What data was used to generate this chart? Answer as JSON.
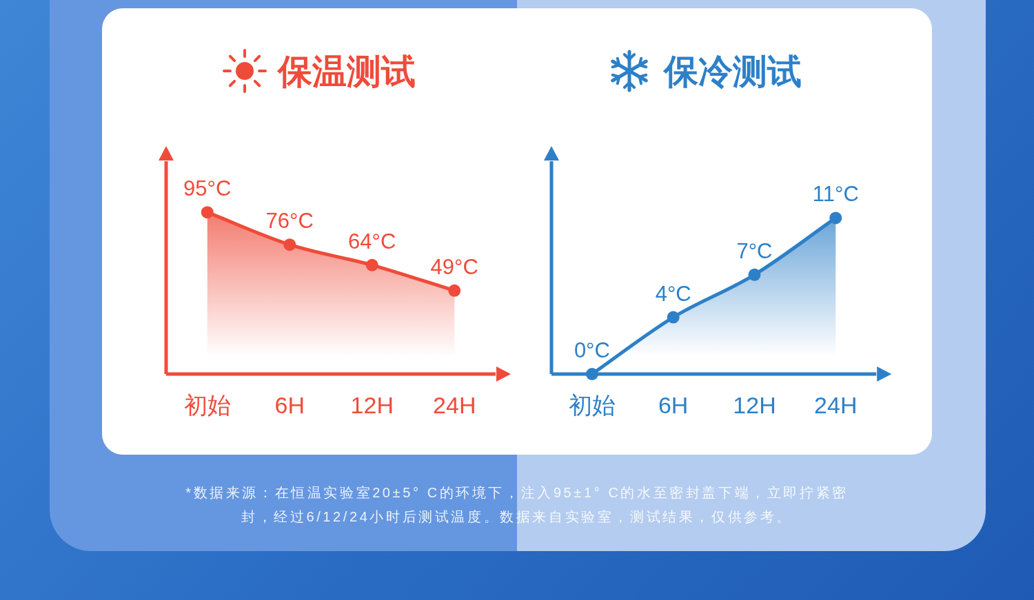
{
  "chart_data": [
    {
      "type": "area",
      "title": "保温测试",
      "categories": [
        "初始",
        "6H",
        "12H",
        "24H"
      ],
      "values": [
        95,
        76,
        64,
        49
      ],
      "value_labels": [
        "95°C",
        "76°C",
        "64°C",
        "49°C"
      ],
      "color": "#ef4b3a",
      "marker": "circle",
      "ylim": [
        0,
        125
      ],
      "tick_labels": "x"
    },
    {
      "type": "area",
      "title": "保冷测试",
      "categories": [
        "初始",
        "6H",
        "12H",
        "24H"
      ],
      "values": [
        0,
        4,
        7,
        11
      ],
      "value_labels": [
        "0°C",
        "4°C",
        "7°C",
        "11°C"
      ],
      "color": "#2d80c8",
      "marker": "circle",
      "ylim": [
        0,
        15
      ],
      "tick_labels": "x"
    },
    {
      "type": "other",
      "annotations": [
        "*数据来源：在恒温实验室20±5° C的环境下，注入95±1° C的水至密封盖下端，立即拧紧密封，经过6/12/24小时后测试温度。数据来自实验室，测试结果，仅供参考。"
      ]
    }
  ]
}
